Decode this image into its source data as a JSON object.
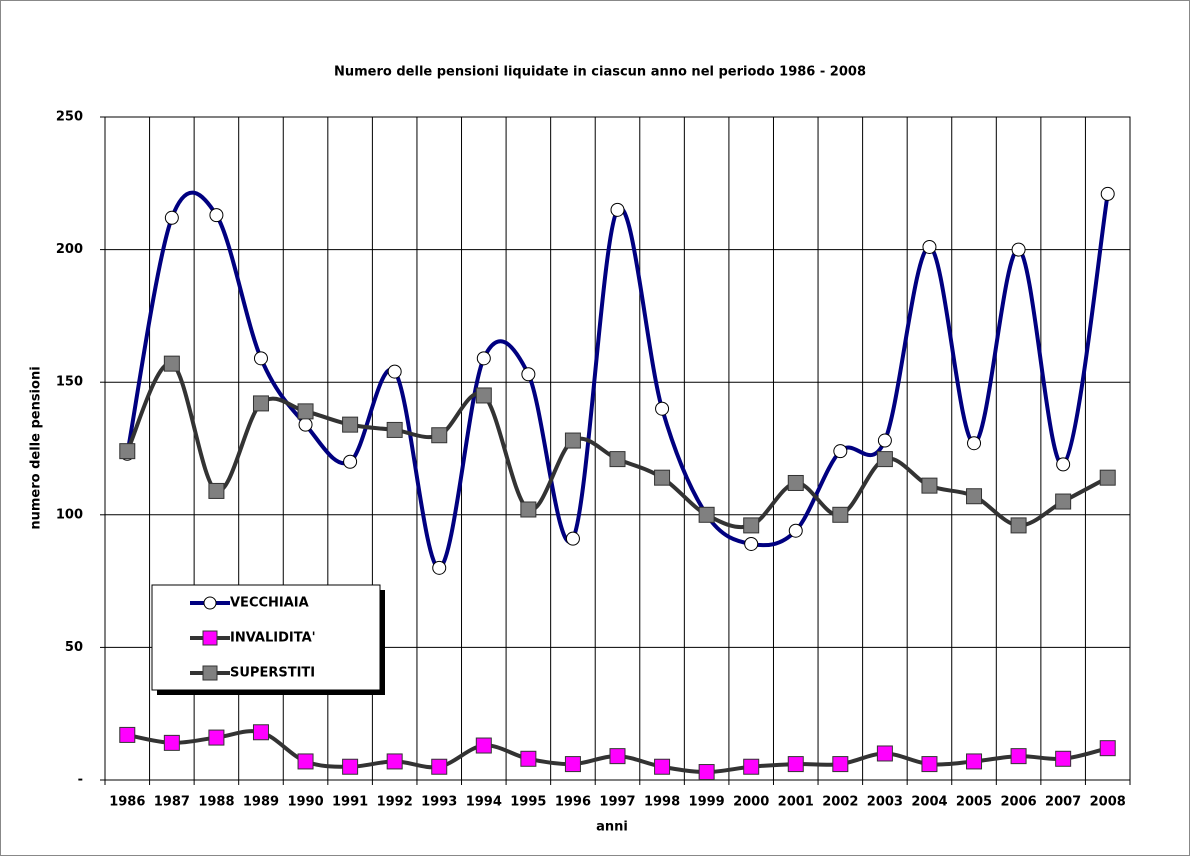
{
  "chart_data": {
    "type": "line",
    "title": "Numero delle pensioni liquidate in ciascun anno nel periodo 1986 - 2008",
    "x_label": "anni",
    "y_label": "numero delle pensioni",
    "categories": [
      "1986",
      "1987",
      "1988",
      "1989",
      "1990",
      "1991",
      "1992",
      "1993",
      "1994",
      "1995",
      "1996",
      "1997",
      "1998",
      "1999",
      "2000",
      "2001",
      "2002",
      "2003",
      "2004",
      "2005",
      "2006",
      "2007",
      "2008"
    ],
    "series": [
      {
        "name": "VECCHIAIA",
        "color": "#000080",
        "marker": "circle",
        "marker_color": "#ffffff",
        "values": [
          123,
          212,
          213,
          159,
          134,
          120,
          154,
          80,
          159,
          153,
          91,
          215,
          140,
          100,
          89,
          94,
          124,
          128,
          201,
          127,
          200,
          119,
          221
        ]
      },
      {
        "name": "INVALIDITA'",
        "color": "#333333",
        "marker": "square",
        "marker_color": "#ff00ff",
        "values": [
          17,
          14,
          16,
          18,
          7,
          5,
          7,
          5,
          13,
          8,
          6,
          9,
          5,
          3,
          5,
          6,
          6,
          10,
          6,
          7,
          9,
          8,
          12
        ]
      },
      {
        "name": "SUPERSTITI",
        "color": "#333333",
        "marker": "square",
        "marker_color": "#808080",
        "values": [
          124,
          157,
          109,
          142,
          139,
          134,
          132,
          130,
          145,
          102,
          128,
          121,
          114,
          100,
          96,
          112,
          100,
          121,
          111,
          107,
          96,
          105,
          114
        ]
      }
    ],
    "ylim": [
      0,
      250
    ],
    "yticks": [
      {
        "value": 0,
        "label": "-"
      },
      50,
      100,
      150,
      200,
      250
    ],
    "grid": true,
    "smooth": true,
    "legend": "lower left"
  }
}
